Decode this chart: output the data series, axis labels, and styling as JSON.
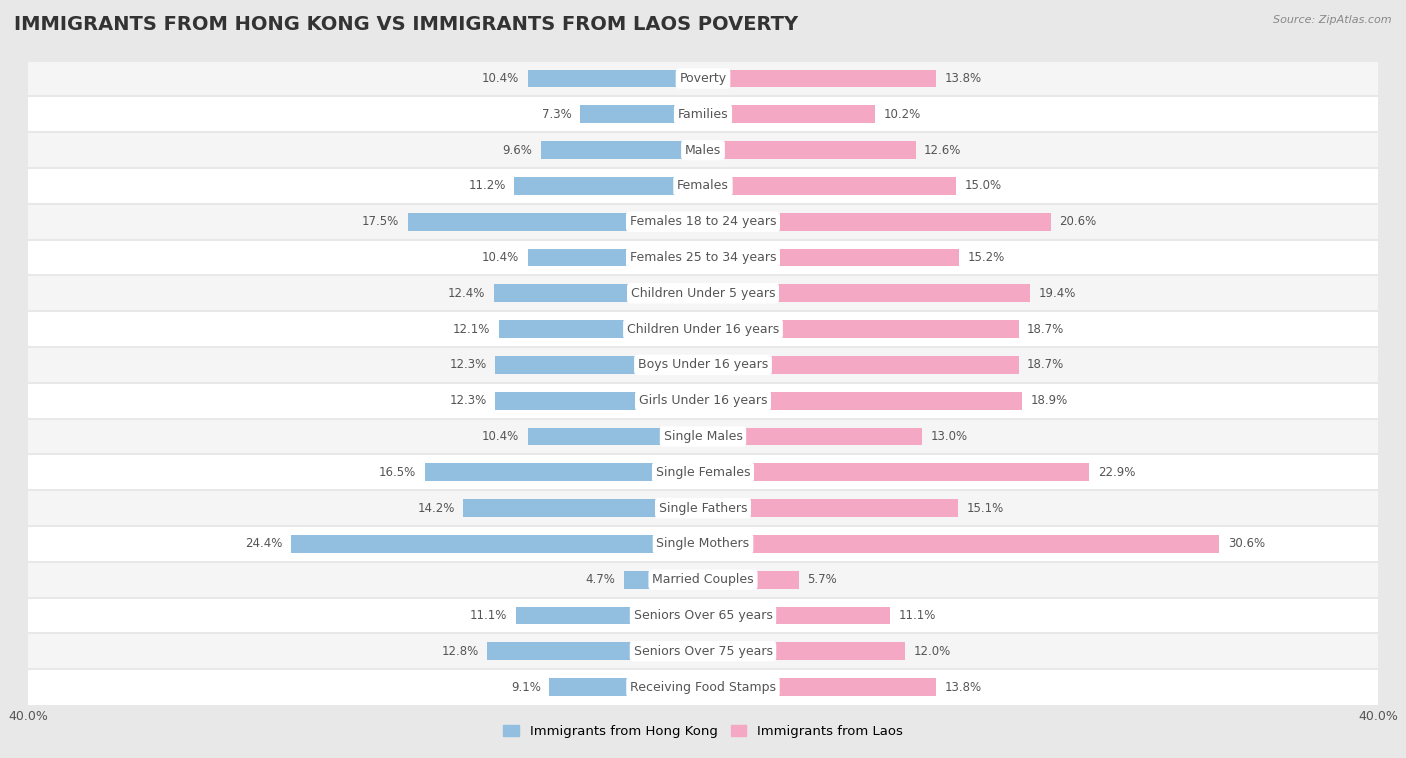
{
  "title": "IMMIGRANTS FROM HONG KONG VS IMMIGRANTS FROM LAOS POVERTY",
  "source": "Source: ZipAtlas.com",
  "categories": [
    "Poverty",
    "Families",
    "Males",
    "Females",
    "Females 18 to 24 years",
    "Females 25 to 34 years",
    "Children Under 5 years",
    "Children Under 16 years",
    "Boys Under 16 years",
    "Girls Under 16 years",
    "Single Males",
    "Single Females",
    "Single Fathers",
    "Single Mothers",
    "Married Couples",
    "Seniors Over 65 years",
    "Seniors Over 75 years",
    "Receiving Food Stamps"
  ],
  "hong_kong_values": [
    10.4,
    7.3,
    9.6,
    11.2,
    17.5,
    10.4,
    12.4,
    12.1,
    12.3,
    12.3,
    10.4,
    16.5,
    14.2,
    24.4,
    4.7,
    11.1,
    12.8,
    9.1
  ],
  "laos_values": [
    13.8,
    10.2,
    12.6,
    15.0,
    20.6,
    15.2,
    19.4,
    18.7,
    18.7,
    18.9,
    13.0,
    22.9,
    15.1,
    30.6,
    5.7,
    11.1,
    12.0,
    13.8
  ],
  "hk_color": "#92bfe0",
  "laos_color": "#f4a8c4",
  "background_color": "#e8e8e8",
  "row_color_light": "#f5f5f5",
  "row_color_white": "#ffffff",
  "label_box_color": "#ffffff",
  "label_text_color": "#555555",
  "value_text_color": "#555555",
  "xlim_half": 40.0,
  "legend_hk": "Immigrants from Hong Kong",
  "legend_laos": "Immigrants from Laos",
  "title_fontsize": 14,
  "label_fontsize": 9,
  "value_fontsize": 8.5,
  "bar_height": 0.5
}
